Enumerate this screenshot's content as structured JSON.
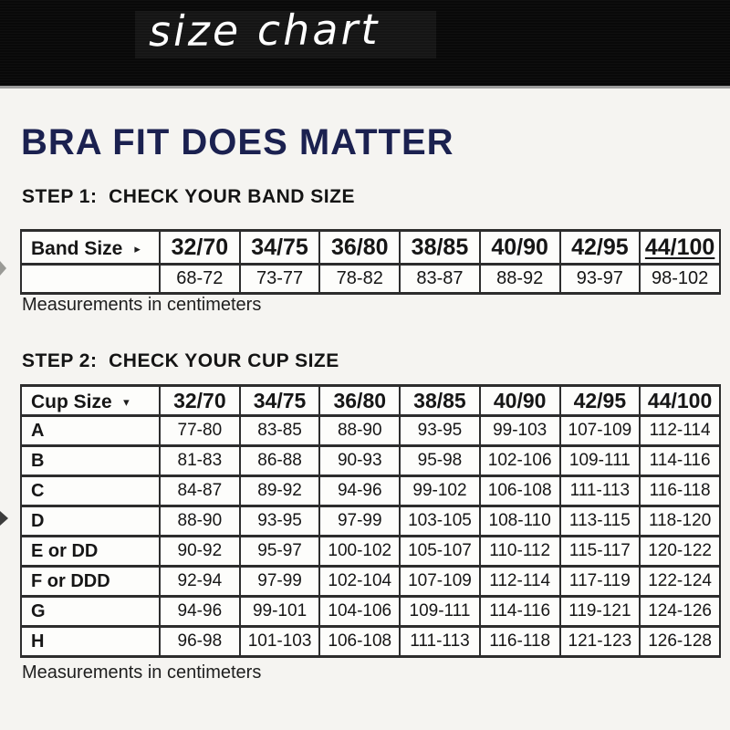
{
  "banner": {
    "title": "size chart"
  },
  "heading": {
    "title": "BRA FIT DOES MATTER"
  },
  "icons": {
    "right_triangle": "▸",
    "down_triangle": "▾"
  },
  "colors": {
    "banner_bg": "#090909",
    "banner_text": "#ffffff",
    "heading_navy": "#1b2150",
    "body_text": "#161616",
    "table_border": "#2d2d2d",
    "table_bg": "#fdfdfb",
    "page_bg": "#f5f4f1"
  },
  "chart_data": [
    {
      "type": "table",
      "title": "STEP 1:  CHECK YOUR BAND SIZE",
      "corner_label": "Band Size",
      "corner_icon": "right-triangle-icon",
      "columns": [
        "32/70",
        "34/75",
        "36/80",
        "38/85",
        "40/90",
        "42/95",
        "44/100"
      ],
      "rows": [
        {
          "label": "",
          "values": [
            "68-72",
            "73-77",
            "78-82",
            "83-87",
            "88-92",
            "93-97",
            "98-102"
          ]
        }
      ],
      "note": "Measurements in centimeters"
    },
    {
      "type": "table",
      "title": "STEP 2:  CHECK YOUR CUP SIZE",
      "corner_label": "Cup Size",
      "corner_icon": "down-triangle-icon",
      "columns": [
        "32/70",
        "34/75",
        "36/80",
        "38/85",
        "40/90",
        "42/95",
        "44/100"
      ],
      "rows": [
        {
          "label": "A",
          "values": [
            "77-80",
            "83-85",
            "88-90",
            "93-95",
            "99-103",
            "107-109",
            "112-114"
          ]
        },
        {
          "label": "B",
          "values": [
            "81-83",
            "86-88",
            "90-93",
            "95-98",
            "102-106",
            "109-111",
            "114-116"
          ]
        },
        {
          "label": "C",
          "values": [
            "84-87",
            "89-92",
            "94-96",
            "99-102",
            "106-108",
            "111-113",
            "116-118"
          ]
        },
        {
          "label": "D",
          "values": [
            "88-90",
            "93-95",
            "97-99",
            "103-105",
            "108-110",
            "113-115",
            "118-120"
          ]
        },
        {
          "label": "E or DD",
          "values": [
            "90-92",
            "95-97",
            "100-102",
            "105-107",
            "110-112",
            "115-117",
            "120-122"
          ]
        },
        {
          "label": "F or DDD",
          "values": [
            "92-94",
            "97-99",
            "102-104",
            "107-109",
            "112-114",
            "117-119",
            "122-124"
          ]
        },
        {
          "label": "G",
          "values": [
            "94-96",
            "99-101",
            "104-106",
            "109-111",
            "114-116",
            "119-121",
            "124-126"
          ]
        },
        {
          "label": "H",
          "values": [
            "96-98",
            "101-103",
            "106-108",
            "111-113",
            "116-118",
            "121-123",
            "126-128"
          ]
        }
      ],
      "note": "Measurements in centimeters"
    }
  ]
}
